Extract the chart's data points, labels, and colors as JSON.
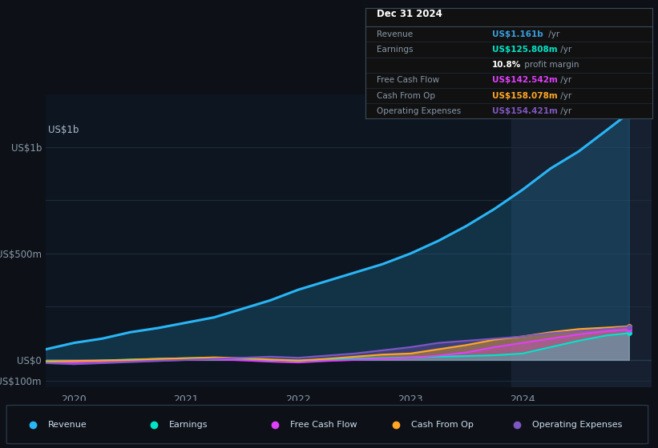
{
  "bg_color": "#0d1117",
  "chart_bg": "#0d1520",
  "grid_color": "#1e2d3d",
  "title_label": "Dec 31 2024",
  "info_table": [
    {
      "label": "Revenue",
      "value": "US$1.161b",
      "suffix": " /yr",
      "value_color": "#3b9ddd"
    },
    {
      "label": "Earnings",
      "value": "US$125.808m",
      "suffix": " /yr",
      "value_color": "#00e5c8"
    },
    {
      "label": "",
      "value": "10.8%",
      "suffix": " profit margin",
      "value_color": "#ffffff"
    },
    {
      "label": "Free Cash Flow",
      "value": "US$142.542m",
      "suffix": " /yr",
      "value_color": "#e040fb"
    },
    {
      "label": "Cash From Op",
      "value": "US$158.078m",
      "suffix": " /yr",
      "value_color": "#ffa726"
    },
    {
      "label": "Operating Expenses",
      "value": "US$154.421m",
      "suffix": " /yr",
      "value_color": "#7e57c2"
    }
  ],
  "x_years": [
    2019.75,
    2020.0,
    2020.25,
    2020.5,
    2020.75,
    2021.0,
    2021.25,
    2021.5,
    2021.75,
    2022.0,
    2022.25,
    2022.5,
    2022.75,
    2023.0,
    2023.25,
    2023.5,
    2023.75,
    2024.0,
    2024.25,
    2024.5,
    2024.75,
    2024.95
  ],
  "revenue": [
    50,
    80,
    100,
    130,
    150,
    175,
    200,
    240,
    280,
    330,
    370,
    410,
    450,
    500,
    560,
    630,
    710,
    800,
    900,
    980,
    1080,
    1161
  ],
  "earnings": [
    -5,
    -8,
    -3,
    2,
    5,
    8,
    10,
    5,
    0,
    -5,
    2,
    5,
    8,
    12,
    15,
    18,
    22,
    30,
    60,
    90,
    115,
    125.808
  ],
  "free_cf": [
    -10,
    -12,
    -8,
    -5,
    -2,
    0,
    3,
    -2,
    -8,
    -12,
    -5,
    0,
    5,
    10,
    20,
    35,
    60,
    80,
    100,
    120,
    135,
    142.542
  ],
  "cash_op": [
    -8,
    -5,
    -3,
    0,
    5,
    8,
    12,
    8,
    2,
    -3,
    5,
    15,
    25,
    30,
    50,
    70,
    95,
    110,
    130,
    145,
    152,
    158.078
  ],
  "op_expenses": [
    -15,
    -20,
    -15,
    -10,
    -5,
    0,
    5,
    10,
    15,
    10,
    20,
    30,
    45,
    60,
    80,
    90,
    100,
    110,
    125,
    135,
    145,
    154.421
  ],
  "ytick_labels": [
    "US$1b",
    "",
    "US$500m",
    "",
    "US$0",
    "-US$100m"
  ],
  "ytick_values": [
    1000,
    750,
    500,
    250,
    0,
    -100
  ],
  "xlim": [
    2019.75,
    2025.15
  ],
  "ylim": [
    -130,
    1250
  ],
  "xtick_years": [
    2020,
    2021,
    2022,
    2023,
    2024
  ],
  "highlight_x_start": 2023.9,
  "highlight_x_end": 2025.15,
  "revenue_color": "#29b6f6",
  "earnings_color": "#00e5c8",
  "free_cf_color": "#e040fb",
  "cash_op_color": "#ffa726",
  "op_expenses_color": "#7e57c2",
  "legend_items": [
    {
      "label": "Revenue",
      "color": "#29b6f6"
    },
    {
      "label": "Earnings",
      "color": "#00e5c8"
    },
    {
      "label": "Free Cash Flow",
      "color": "#e040fb"
    },
    {
      "label": "Cash From Op",
      "color": "#ffa726"
    },
    {
      "label": "Operating Expenses",
      "color": "#7e57c2"
    }
  ]
}
